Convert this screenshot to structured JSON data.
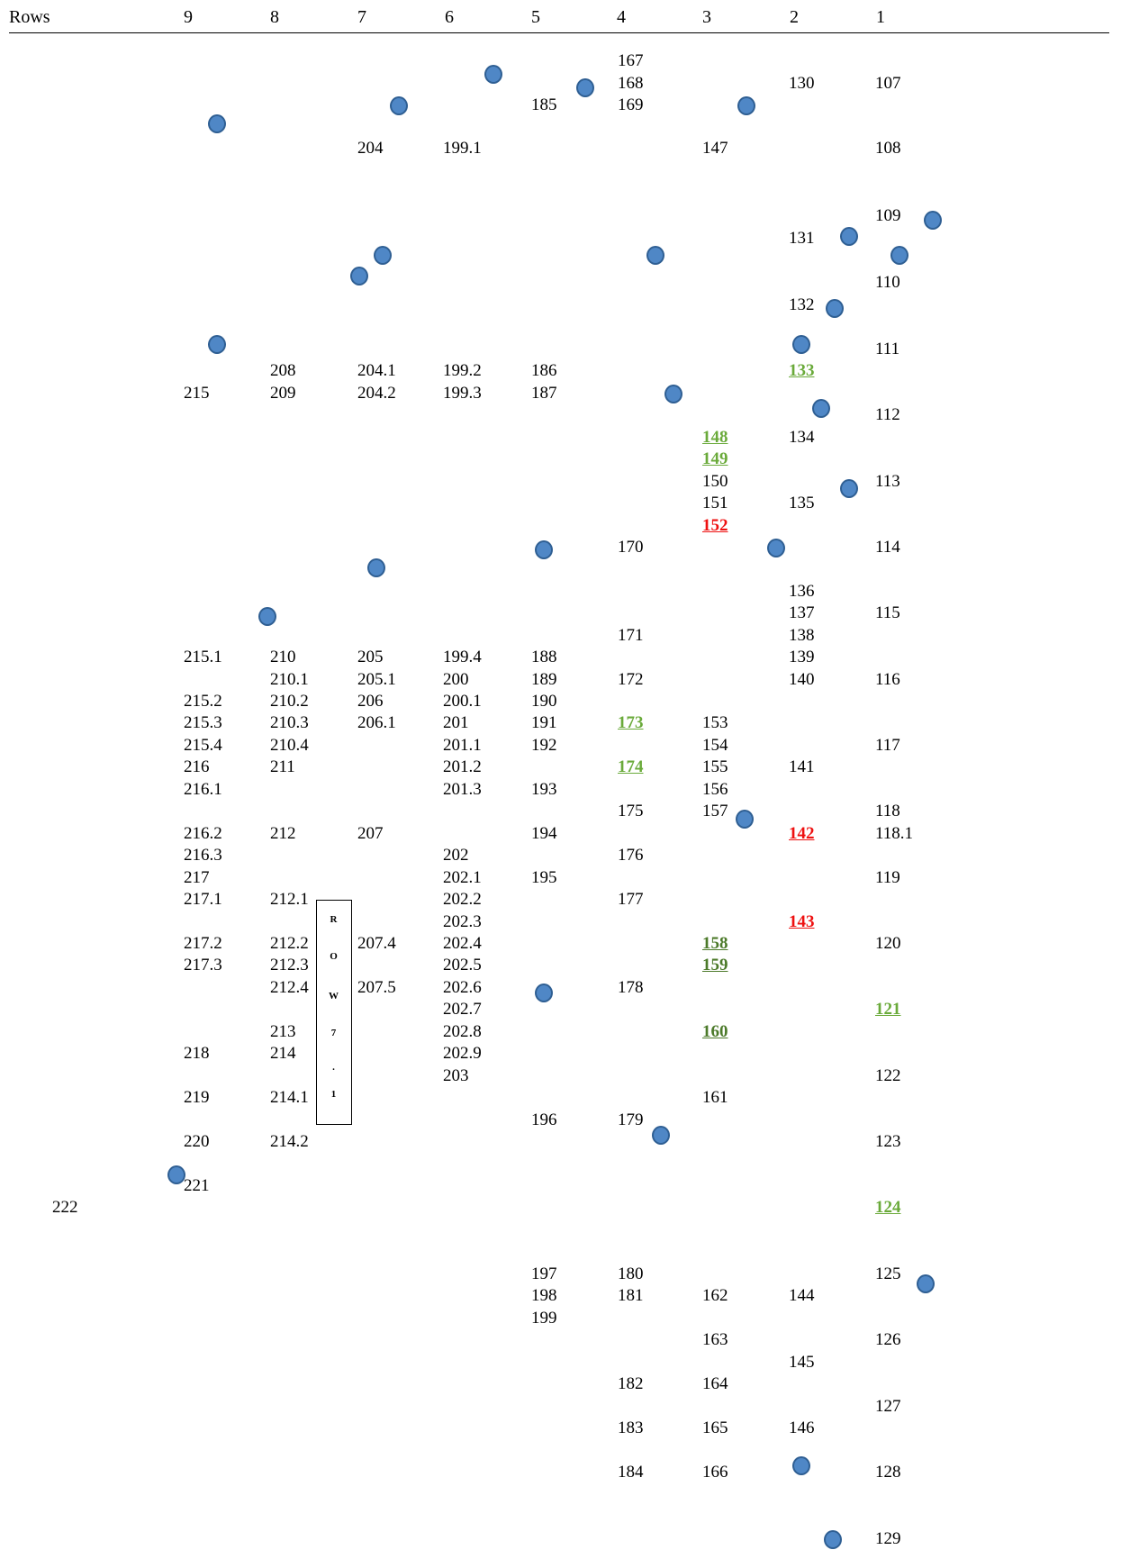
{
  "header": {
    "title": "Rows",
    "columns": [
      "9",
      "8",
      "7",
      "6",
      "5",
      "4",
      "3",
      "2",
      "1"
    ]
  },
  "row_box_text": [
    "R",
    "O",
    "W",
    "7",
    ".",
    "1"
  ],
  "colors": {
    "marker": "#4f87c6",
    "marker_border": "#2f5f93",
    "green_label": "#6aaa3a",
    "dark_green_label": "#4c7a2a",
    "red_label": "#ee1111"
  },
  "labels": [
    {
      "text": "167",
      "col": "4",
      "style": "plain"
    },
    {
      "text": "168",
      "col": "4",
      "style": "plain"
    },
    {
      "text": "169",
      "col": "4",
      "style": "plain"
    },
    {
      "text": "130",
      "col": "2",
      "style": "plain"
    },
    {
      "text": "107",
      "col": "1",
      "style": "plain"
    },
    {
      "text": "185",
      "col": "5",
      "style": "plain"
    },
    {
      "text": "204",
      "col": "7",
      "style": "plain"
    },
    {
      "text": "199.1",
      "col": "6",
      "style": "plain"
    },
    {
      "text": "147",
      "col": "3",
      "style": "plain"
    },
    {
      "text": "108",
      "col": "1",
      "style": "plain"
    },
    {
      "text": "109",
      "col": "1",
      "style": "plain"
    },
    {
      "text": "131",
      "col": "2",
      "style": "plain"
    },
    {
      "text": "110",
      "col": "1",
      "style": "plain"
    },
    {
      "text": "132",
      "col": "2",
      "style": "plain"
    },
    {
      "text": "111",
      "col": "1",
      "style": "plain"
    },
    {
      "text": "208",
      "col": "8",
      "style": "plain"
    },
    {
      "text": "204.1",
      "col": "7",
      "style": "plain"
    },
    {
      "text": "199.2",
      "col": "6",
      "style": "plain"
    },
    {
      "text": "186",
      "col": "5",
      "style": "plain"
    },
    {
      "text": "133",
      "col": "2",
      "style": "green"
    },
    {
      "text": "215",
      "col": "9",
      "style": "plain"
    },
    {
      "text": "209",
      "col": "8",
      "style": "plain"
    },
    {
      "text": "204.2",
      "col": "7",
      "style": "plain"
    },
    {
      "text": "199.3",
      "col": "6",
      "style": "plain"
    },
    {
      "text": "187",
      "col": "5",
      "style": "plain"
    },
    {
      "text": "112",
      "col": "1",
      "style": "plain"
    },
    {
      "text": "148",
      "col": "3",
      "style": "green"
    },
    {
      "text": "134",
      "col": "2",
      "style": "plain"
    },
    {
      "text": "149",
      "col": "3",
      "style": "green"
    },
    {
      "text": "150",
      "col": "3",
      "style": "plain"
    },
    {
      "text": "113",
      "col": "1",
      "style": "plain"
    },
    {
      "text": "151",
      "col": "3",
      "style": "plain"
    },
    {
      "text": "135",
      "col": "2",
      "style": "plain"
    },
    {
      "text": "152",
      "col": "3",
      "style": "red"
    },
    {
      "text": "170",
      "col": "4",
      "style": "plain"
    },
    {
      "text": "114",
      "col": "1",
      "style": "plain"
    },
    {
      "text": "136",
      "col": "2",
      "style": "plain"
    },
    {
      "text": "137",
      "col": "2",
      "style": "plain"
    },
    {
      "text": "115",
      "col": "1",
      "style": "plain"
    },
    {
      "text": "171",
      "col": "4",
      "style": "plain"
    },
    {
      "text": "138",
      "col": "2",
      "style": "plain"
    },
    {
      "text": "215.1",
      "col": "9",
      "style": "plain"
    },
    {
      "text": "210",
      "col": "8",
      "style": "plain"
    },
    {
      "text": "205",
      "col": "7",
      "style": "plain"
    },
    {
      "text": "199.4",
      "col": "6",
      "style": "plain"
    },
    {
      "text": "188",
      "col": "5",
      "style": "plain"
    },
    {
      "text": "139",
      "col": "2",
      "style": "plain"
    },
    {
      "text": "210.1",
      "col": "8",
      "style": "plain"
    },
    {
      "text": "205.1",
      "col": "7",
      "style": "plain"
    },
    {
      "text": "200",
      "col": "6",
      "style": "plain"
    },
    {
      "text": "189",
      "col": "5",
      "style": "plain"
    },
    {
      "text": "172",
      "col": "4",
      "style": "plain"
    },
    {
      "text": "140",
      "col": "2",
      "style": "plain"
    },
    {
      "text": "116",
      "col": "1",
      "style": "plain"
    },
    {
      "text": "215.2",
      "col": "9",
      "style": "plain"
    },
    {
      "text": "210.2",
      "col": "8",
      "style": "plain"
    },
    {
      "text": "206",
      "col": "7",
      "style": "plain"
    },
    {
      "text": "200.1",
      "col": "6",
      "style": "plain"
    },
    {
      "text": "190",
      "col": "5",
      "style": "plain"
    },
    {
      "text": "215.3",
      "col": "9",
      "style": "plain"
    },
    {
      "text": "210.3",
      "col": "8",
      "style": "plain"
    },
    {
      "text": "206.1",
      "col": "7",
      "style": "plain"
    },
    {
      "text": "201",
      "col": "6",
      "style": "plain"
    },
    {
      "text": "191",
      "col": "5",
      "style": "plain"
    },
    {
      "text": "173",
      "col": "4",
      "style": "green"
    },
    {
      "text": "153",
      "col": "3",
      "style": "plain"
    },
    {
      "text": "215.4",
      "col": "9",
      "style": "plain"
    },
    {
      "text": "210.4",
      "col": "8",
      "style": "plain"
    },
    {
      "text": "201.1",
      "col": "6",
      "style": "plain"
    },
    {
      "text": "192",
      "col": "5",
      "style": "plain"
    },
    {
      "text": "154",
      "col": "3",
      "style": "plain"
    },
    {
      "text": "117",
      "col": "1",
      "style": "plain"
    },
    {
      "text": "216",
      "col": "9",
      "style": "plain"
    },
    {
      "text": "211",
      "col": "8",
      "style": "plain"
    },
    {
      "text": "201.2",
      "col": "6",
      "style": "plain"
    },
    {
      "text": "174",
      "col": "4",
      "style": "green"
    },
    {
      "text": "155",
      "col": "3",
      "style": "plain"
    },
    {
      "text": "141",
      "col": "2",
      "style": "plain"
    },
    {
      "text": "216.1",
      "col": "9",
      "style": "plain"
    },
    {
      "text": "201.3",
      "col": "6",
      "style": "plain"
    },
    {
      "text": "193",
      "col": "5",
      "style": "plain"
    },
    {
      "text": "156",
      "col": "3",
      "style": "plain"
    },
    {
      "text": "175",
      "col": "4",
      "style": "plain"
    },
    {
      "text": "157",
      "col": "3",
      "style": "plain"
    },
    {
      "text": "118",
      "col": "1",
      "style": "plain"
    },
    {
      "text": "216.2",
      "col": "9",
      "style": "plain"
    },
    {
      "text": "212",
      "col": "8",
      "style": "plain"
    },
    {
      "text": "207",
      "col": "7",
      "style": "plain"
    },
    {
      "text": "194",
      "col": "5",
      "style": "plain"
    },
    {
      "text": "142",
      "col": "2",
      "style": "red"
    },
    {
      "text": "118.1",
      "col": "1",
      "style": "plain"
    },
    {
      "text": "216.3",
      "col": "9",
      "style": "plain"
    },
    {
      "text": "202",
      "col": "6",
      "style": "plain"
    },
    {
      "text": "176",
      "col": "4",
      "style": "plain"
    },
    {
      "text": "217",
      "col": "9",
      "style": "plain"
    },
    {
      "text": "202.1",
      "col": "6",
      "style": "plain"
    },
    {
      "text": "195",
      "col": "5",
      "style": "plain"
    },
    {
      "text": "119",
      "col": "1",
      "style": "plain"
    },
    {
      "text": "217.1",
      "col": "9",
      "style": "plain"
    },
    {
      "text": "212.1",
      "col": "8",
      "style": "plain"
    },
    {
      "text": "202.2",
      "col": "6",
      "style": "plain"
    },
    {
      "text": "177",
      "col": "4",
      "style": "plain"
    },
    {
      "text": "202.3",
      "col": "6",
      "style": "plain"
    },
    {
      "text": "143",
      "col": "2",
      "style": "red"
    },
    {
      "text": "217.2",
      "col": "9",
      "style": "plain"
    },
    {
      "text": "212.2",
      "col": "8",
      "style": "plain"
    },
    {
      "text": "207.4",
      "col": "7",
      "style": "plain"
    },
    {
      "text": "202.4",
      "col": "6",
      "style": "plain"
    },
    {
      "text": "158",
      "col": "3",
      "style": "dgreen"
    },
    {
      "text": "120",
      "col": "1",
      "style": "plain"
    },
    {
      "text": "217.3",
      "col": "9",
      "style": "plain"
    },
    {
      "text": "212.3",
      "col": "8",
      "style": "plain"
    },
    {
      "text": "202.5",
      "col": "6",
      "style": "plain"
    },
    {
      "text": "159",
      "col": "3",
      "style": "dgreen"
    },
    {
      "text": "212.4",
      "col": "8",
      "style": "plain"
    },
    {
      "text": "207.5",
      "col": "7",
      "style": "plain"
    },
    {
      "text": "202.6",
      "col": "6",
      "style": "plain"
    },
    {
      "text": "178",
      "col": "4",
      "style": "plain"
    },
    {
      "text": "202.7",
      "col": "6",
      "style": "plain"
    },
    {
      "text": "121",
      "col": "1",
      "style": "green"
    },
    {
      "text": "213",
      "col": "8",
      "style": "plain"
    },
    {
      "text": "202.8",
      "col": "6",
      "style": "plain"
    },
    {
      "text": "160",
      "col": "3",
      "style": "dgreen"
    },
    {
      "text": "218",
      "col": "9",
      "style": "plain"
    },
    {
      "text": "214",
      "col": "8",
      "style": "plain"
    },
    {
      "text": "202.9",
      "col": "6",
      "style": "plain"
    },
    {
      "text": "203",
      "col": "6",
      "style": "plain"
    },
    {
      "text": "122",
      "col": "1",
      "style": "plain"
    },
    {
      "text": "219",
      "col": "9",
      "style": "plain"
    },
    {
      "text": "214.1",
      "col": "8",
      "style": "plain"
    },
    {
      "text": "161",
      "col": "3",
      "style": "plain"
    },
    {
      "text": "196",
      "col": "5",
      "style": "plain"
    },
    {
      "text": "179",
      "col": "4",
      "style": "plain"
    },
    {
      "text": "220",
      "col": "9",
      "style": "plain"
    },
    {
      "text": "214.2",
      "col": "8",
      "style": "plain"
    },
    {
      "text": "123",
      "col": "1",
      "style": "plain"
    },
    {
      "text": "221",
      "col": "9",
      "style": "plain"
    },
    {
      "text": "222",
      "col": "",
      "style": "plain"
    },
    {
      "text": "124",
      "col": "1",
      "style": "green"
    },
    {
      "text": "197",
      "col": "5",
      "style": "plain"
    },
    {
      "text": "180",
      "col": "4",
      "style": "plain"
    },
    {
      "text": "125",
      "col": "1",
      "style": "plain"
    },
    {
      "text": "198",
      "col": "5",
      "style": "plain"
    },
    {
      "text": "181",
      "col": "4",
      "style": "plain"
    },
    {
      "text": "162",
      "col": "3",
      "style": "plain"
    },
    {
      "text": "144",
      "col": "2",
      "style": "plain"
    },
    {
      "text": "199",
      "col": "5",
      "style": "plain"
    },
    {
      "text": "163",
      "col": "3",
      "style": "plain"
    },
    {
      "text": "126",
      "col": "1",
      "style": "plain"
    },
    {
      "text": "145",
      "col": "2",
      "style": "plain"
    },
    {
      "text": "182",
      "col": "4",
      "style": "plain"
    },
    {
      "text": "164",
      "col": "3",
      "style": "plain"
    },
    {
      "text": "127",
      "col": "1",
      "style": "plain"
    },
    {
      "text": "183",
      "col": "4",
      "style": "plain"
    },
    {
      "text": "165",
      "col": "3",
      "style": "plain"
    },
    {
      "text": "146",
      "col": "2",
      "style": "plain"
    },
    {
      "text": "184",
      "col": "4",
      "style": "plain"
    },
    {
      "text": "166",
      "col": "3",
      "style": "plain"
    },
    {
      "text": "128",
      "col": "1",
      "style": "plain"
    },
    {
      "text": "129",
      "col": "1",
      "style": "plain"
    }
  ],
  "marker_count": 33
}
